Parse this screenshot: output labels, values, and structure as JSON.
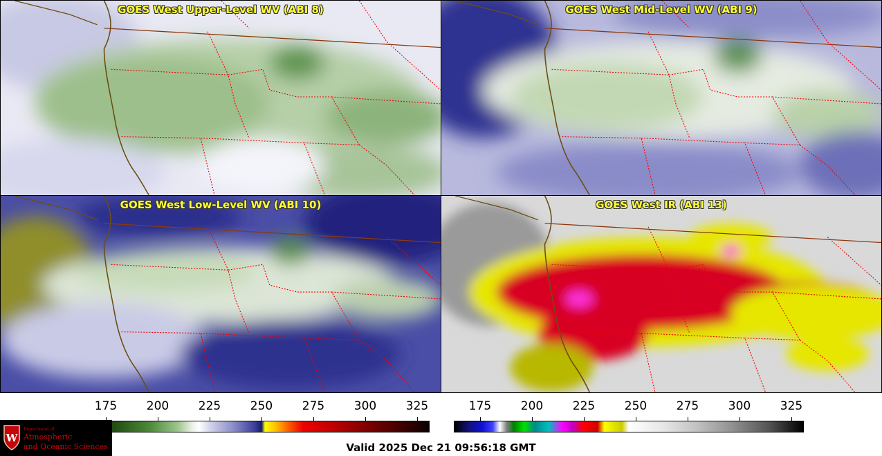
{
  "panels": [
    {
      "title": "GOES West Upper-Level WV (ABI 8)",
      "palette": "wv-upper"
    },
    {
      "title": "GOES West Mid-Level WV (ABI 9)",
      "palette": "wv-mid"
    },
    {
      "title": "GOES West Low-Level WV (ABI 10)",
      "palette": "wv-low"
    },
    {
      "title": "GOES West IR (ABI 13)",
      "palette": "ir"
    }
  ],
  "colorbar_wv": {
    "ticks": [
      "175",
      "200",
      "225",
      "250",
      "275",
      "300",
      "325"
    ]
  },
  "colorbar_ir": {
    "ticks": [
      "175",
      "200",
      "225",
      "250",
      "275",
      "300",
      "325"
    ]
  },
  "logo": {
    "dept": "Department of",
    "line1": "Atmospheric",
    "line2": "and Oceanic Sciences",
    "shield_letter": "W"
  },
  "valid_text": "Valid 2025 Dec 21 09:56:18 GMT",
  "colors": {
    "title_text": "#ffff33",
    "coast": "#6b4e14",
    "border": "#ee0000",
    "logo_red": "#c5050c"
  }
}
